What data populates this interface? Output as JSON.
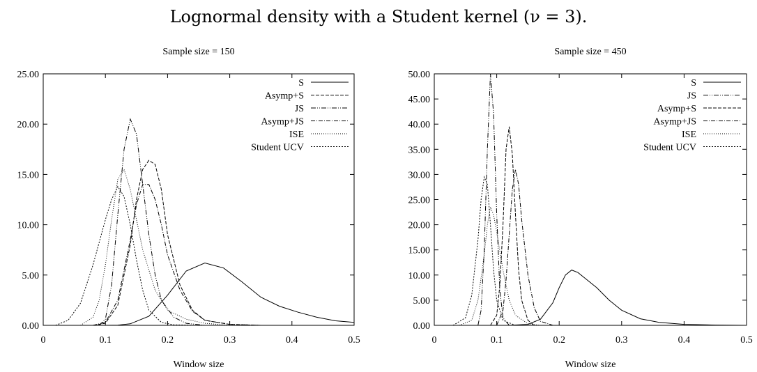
{
  "figure_title": "Lognormal density with a Student kernel (ν = 3).",
  "chart_data": [
    {
      "type": "line",
      "title": "Sample size = 150",
      "xlabel": "Window size",
      "ylabel": "",
      "xlim": [
        0,
        0.5
      ],
      "ylim": [
        0,
        25
      ],
      "xticks": [
        "0",
        "0.1",
        "0.2",
        "0.3",
        "0.4",
        "0.5"
      ],
      "xtick_values": [
        0,
        0.1,
        0.2,
        0.3,
        0.4,
        0.5
      ],
      "yticks": [
        "0.00",
        "5.00",
        "10.00",
        "15.00",
        "20.00",
        "25.00"
      ],
      "ytick_values": [
        0,
        5,
        10,
        15,
        20,
        25
      ],
      "legend_position": "top-right",
      "series": [
        {
          "name": "S",
          "dash": "",
          "x": [
            0.1,
            0.12,
            0.14,
            0.17,
            0.2,
            0.23,
            0.26,
            0.29,
            0.32,
            0.35,
            0.38,
            0.41,
            0.44,
            0.47,
            0.5
          ],
          "y": [
            0,
            0.02,
            0.15,
            0.9,
            3.0,
            5.4,
            6.2,
            5.7,
            4.3,
            2.8,
            1.9,
            1.3,
            0.8,
            0.45,
            0.3
          ]
        },
        {
          "name": "Asymp+S",
          "dash": "5,2",
          "x": [
            0.08,
            0.1,
            0.12,
            0.14,
            0.15,
            0.16,
            0.17,
            0.18,
            0.19,
            0.2,
            0.22,
            0.24,
            0.26,
            0.3,
            0.35
          ],
          "y": [
            0,
            0.2,
            2.0,
            8.0,
            12.5,
            15.5,
            16.4,
            16.0,
            13.5,
            9.0,
            4.0,
            1.5,
            0.5,
            0.1,
            0
          ]
        },
        {
          "name": "JS",
          "dash": "7,2,1,2,1,2",
          "x": [
            0.09,
            0.1,
            0.11,
            0.12,
            0.13,
            0.14,
            0.15,
            0.16,
            0.17,
            0.18,
            0.19,
            0.21,
            0.23,
            0.26
          ],
          "y": [
            0,
            0.6,
            4.0,
            11.0,
            17.5,
            20.5,
            19.0,
            14.0,
            9.0,
            5.0,
            2.5,
            0.8,
            0.2,
            0
          ]
        },
        {
          "name": "Asymp+JS",
          "dash": "6,2,1,2",
          "x": [
            0.08,
            0.1,
            0.12,
            0.14,
            0.15,
            0.16,
            0.17,
            0.18,
            0.19,
            0.2,
            0.22,
            0.24,
            0.26,
            0.3,
            0.35
          ],
          "y": [
            0,
            0.3,
            2.5,
            8.5,
            12.0,
            14.0,
            14.0,
            12.5,
            10.0,
            7.0,
            3.5,
            1.4,
            0.5,
            0.1,
            0
          ]
        },
        {
          "name": "ISE",
          "dash": "1,2",
          "x": [
            0.06,
            0.08,
            0.09,
            0.1,
            0.11,
            0.12,
            0.13,
            0.14,
            0.15,
            0.16,
            0.18,
            0.2,
            0.23,
            0.26,
            0.3
          ],
          "y": [
            0,
            0.8,
            2.5,
            6.0,
            10.5,
            14.5,
            15.5,
            13.5,
            10.5,
            7.5,
            3.5,
            1.5,
            0.6,
            0.2,
            0
          ]
        },
        {
          "name": "Student UCV",
          "dash": "2,2",
          "x": [
            0.02,
            0.04,
            0.06,
            0.08,
            0.1,
            0.11,
            0.12,
            0.13,
            0.14,
            0.15,
            0.16,
            0.17,
            0.19,
            0.21,
            0.25
          ],
          "y": [
            0,
            0.5,
            2.2,
            6.0,
            10.5,
            12.5,
            13.8,
            12.8,
            10.0,
            6.5,
            3.5,
            1.5,
            0.3,
            0.05,
            0
          ]
        }
      ]
    },
    {
      "type": "line",
      "title": "Sample size = 450",
      "xlabel": "Window size",
      "ylabel": "",
      "xlim": [
        0,
        0.5
      ],
      "ylim": [
        0,
        50
      ],
      "xticks": [
        "0",
        "0.1",
        "0.2",
        "0.3",
        "0.4",
        "0.5"
      ],
      "xtick_values": [
        0,
        0.1,
        0.2,
        0.3,
        0.4,
        0.5
      ],
      "yticks": [
        "0.00",
        "5.00",
        "10.00",
        "15.00",
        "20.00",
        "25.00",
        "30.00",
        "35.00",
        "40.00",
        "45.00",
        "50.00"
      ],
      "ytick_values": [
        0,
        5,
        10,
        15,
        20,
        25,
        30,
        35,
        40,
        45,
        50
      ],
      "legend_position": "top-right",
      "series": [
        {
          "name": "S",
          "dash": "",
          "x": [
            0.12,
            0.15,
            0.17,
            0.19,
            0.2,
            0.21,
            0.22,
            0.23,
            0.24,
            0.26,
            0.28,
            0.3,
            0.33,
            0.36,
            0.4,
            0.45,
            0.5
          ],
          "y": [
            0,
            0.2,
            1.2,
            4.5,
            7.5,
            10.0,
            11.0,
            10.5,
            9.5,
            7.5,
            5.0,
            3.0,
            1.3,
            0.6,
            0.2,
            0.05,
            0
          ]
        },
        {
          "name": "JS",
          "dash": "7,2,1,2,1,2",
          "x": [
            0.07,
            0.075,
            0.08,
            0.085,
            0.09,
            0.095,
            0.1,
            0.105,
            0.11,
            0.12
          ],
          "y": [
            0,
            3.0,
            15.0,
            35.0,
            50.0,
            42.0,
            22.0,
            7.0,
            1.5,
            0
          ]
        },
        {
          "name": "Asymp+S",
          "dash": "5,2",
          "x": [
            0.09,
            0.1,
            0.105,
            0.11,
            0.115,
            0.12,
            0.125,
            0.13,
            0.135,
            0.14,
            0.15,
            0.16
          ],
          "y": [
            0,
            2.0,
            8.0,
            20.0,
            35.0,
            39.5,
            34.0,
            22.0,
            11.0,
            5.0,
            1.0,
            0
          ]
        },
        {
          "name": "Asymp+JS",
          "dash": "6,2,1,2",
          "x": [
            0.1,
            0.11,
            0.115,
            0.12,
            0.125,
            0.13,
            0.135,
            0.14,
            0.15,
            0.16,
            0.17,
            0.19
          ],
          "y": [
            0,
            3.0,
            9.0,
            18.0,
            27.0,
            31.0,
            28.0,
            21.0,
            10.0,
            3.5,
            0.8,
            0
          ]
        },
        {
          "name": "ISE",
          "dash": "1,2",
          "x": [
            0.04,
            0.06,
            0.07,
            0.08,
            0.085,
            0.09,
            0.095,
            0.1,
            0.11,
            0.12,
            0.13,
            0.15,
            0.17
          ],
          "y": [
            0,
            1.0,
            5.0,
            14.0,
            20.0,
            23.5,
            22.0,
            18.5,
            11.0,
            5.0,
            2.0,
            0.3,
            0
          ]
        },
        {
          "name": "Student UCV",
          "dash": "2,2",
          "x": [
            0.03,
            0.05,
            0.06,
            0.07,
            0.075,
            0.08,
            0.085,
            0.09,
            0.095,
            0.1,
            0.11,
            0.13
          ],
          "y": [
            0,
            1.5,
            6.0,
            17.0,
            25.0,
            29.5,
            28.0,
            20.0,
            11.0,
            5.0,
            1.0,
            0
          ]
        }
      ]
    }
  ]
}
